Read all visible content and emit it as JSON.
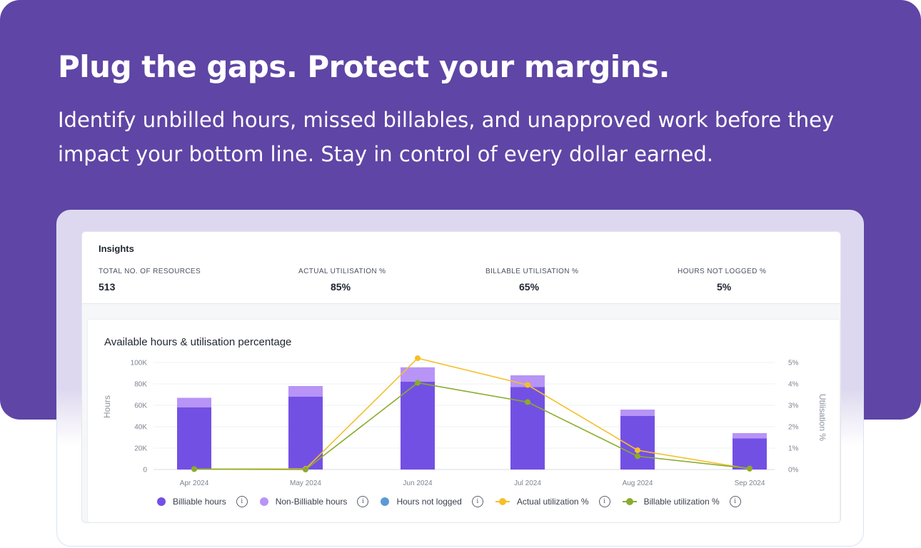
{
  "hero": {
    "title": "Plug the gaps. Protect your margins.",
    "subtitle": "Identify unbilled hours, missed billables, and unapproved work before they impact your bottom line. Stay in control of every dollar earned."
  },
  "insights": {
    "title": "Insights",
    "metrics": [
      {
        "label": "TOTAL NO. OF RESOURCES",
        "value": "513"
      },
      {
        "label": "ACTUAL UTILISATION %",
        "value": "85%"
      },
      {
        "label": "BILLABLE UTILISATION %",
        "value": "65%"
      },
      {
        "label": "HOURS NOT LOGGED %",
        "value": "5%"
      }
    ]
  },
  "chart_data": {
    "type": "bar",
    "title": "Available hours & utilisation percentage",
    "categories": [
      "Apr 2024",
      "May 2024",
      "Jun 2024",
      "Jul 2024",
      "Aug 2024",
      "Sep 2024"
    ],
    "ylabel": "Hours",
    "y2label": "Utilisation %",
    "y_ticks": [
      "0",
      "20K",
      "40K",
      "60K",
      "80K",
      "100K"
    ],
    "y2_ticks": [
      "0%",
      "1%",
      "2%",
      "3%",
      "4%",
      "5%"
    ],
    "ylim": [
      0,
      100000
    ],
    "y2lim": [
      0,
      5
    ],
    "grid": true,
    "legend_position": "bottom",
    "series": [
      {
        "name": "Billiable hours",
        "kind": "bar",
        "axis": "left",
        "color": "#7350e4",
        "values": [
          58000,
          68000,
          82000,
          77000,
          50000,
          29000
        ]
      },
      {
        "name": "Non-Billiable hours",
        "kind": "bar",
        "axis": "left",
        "color": "#b794f6",
        "values": [
          9000,
          10000,
          13500,
          11000,
          6000,
          5000
        ]
      },
      {
        "name": "Hours not logged",
        "kind": "bar",
        "axis": "left",
        "color": "#5b9bd5",
        "values": [
          0,
          0,
          0,
          0,
          0,
          0
        ]
      },
      {
        "name": "Actual utilization %",
        "kind": "line",
        "axis": "right",
        "color": "#f6be2b",
        "values": [
          0.02,
          0.03,
          5.2,
          3.95,
          0.9,
          0.03
        ]
      },
      {
        "name": "Billable utilization %",
        "kind": "line",
        "axis": "right",
        "color": "#8aac2c",
        "values": [
          0.02,
          0.0,
          4.05,
          3.15,
          0.62,
          0.05
        ]
      }
    ],
    "legend_info_icon": "info-circle-icon"
  },
  "colors": {
    "hero_bg": "#5f45a5",
    "billable": "#7350e4",
    "non_billable": "#b794f6",
    "not_logged": "#5b9bd5",
    "actual_util": "#f6be2b",
    "billable_util": "#8aac2c"
  }
}
